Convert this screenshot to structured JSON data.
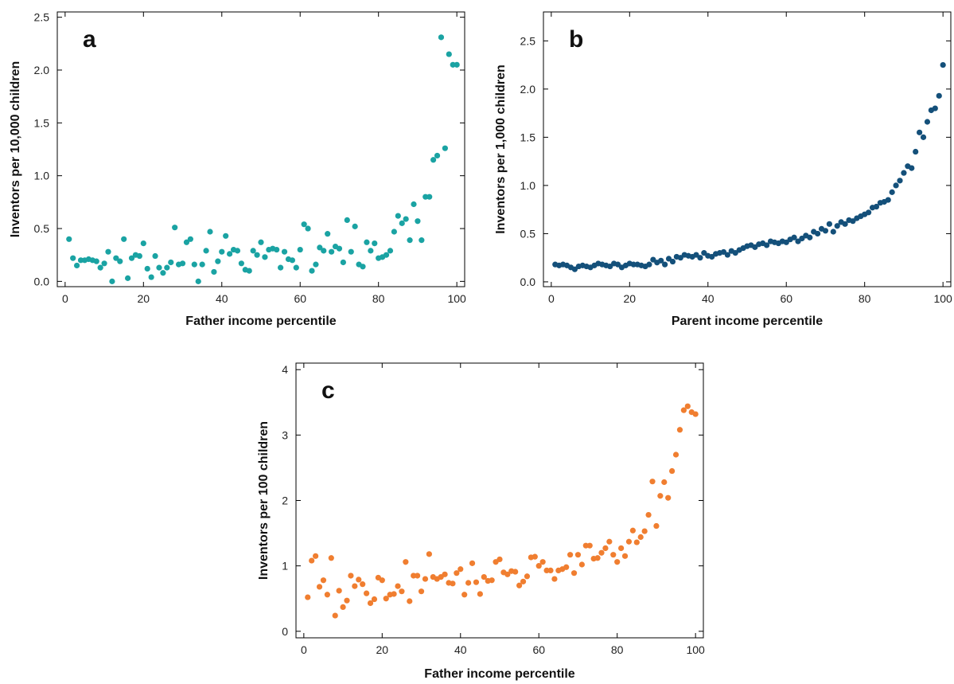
{
  "chart_data": [
    {
      "panel": "a",
      "type": "scatter",
      "xlabel": "Father income percentile",
      "ylabel": "Inventors per 10,000 children",
      "xlim": [
        -2,
        102
      ],
      "ylim": [
        -0.05,
        2.55
      ],
      "xticks": [
        0,
        20,
        40,
        60,
        80,
        100
      ],
      "yticks": [
        0.0,
        0.5,
        1.0,
        1.5,
        2.0,
        2.5
      ],
      "ytick_labels": [
        "0.0",
        "0.5",
        "1.0",
        "1.5",
        "2.0",
        "2.5"
      ],
      "color": "#1aa3a3",
      "grid": false,
      "x": [
        1,
        2,
        3,
        4,
        5,
        6,
        7,
        8,
        9,
        10,
        11,
        12,
        13,
        14,
        15,
        16,
        17,
        18,
        19,
        20,
        21,
        22,
        23,
        24,
        25,
        26,
        27,
        28,
        29,
        30,
        31,
        32,
        33,
        34,
        35,
        36,
        37,
        38,
        39,
        40,
        41,
        42,
        43,
        44,
        45,
        46,
        47,
        48,
        49,
        50,
        51,
        52,
        53,
        54,
        55,
        56,
        57,
        58,
        59,
        60,
        61,
        62,
        63,
        64,
        65,
        66,
        67,
        68,
        69,
        70,
        71,
        72,
        73,
        74,
        75,
        76,
        77,
        78,
        79,
        80,
        81,
        82,
        83,
        84,
        85,
        86,
        87,
        88,
        89,
        90,
        91,
        92,
        93,
        94,
        95,
        96,
        97,
        98,
        99,
        100
      ],
      "y": [
        0.4,
        0.22,
        0.15,
        0.2,
        0.2,
        0.21,
        0.2,
        0.19,
        0.13,
        0.17,
        0.28,
        0.0,
        0.22,
        0.19,
        0.4,
        0.03,
        0.22,
        0.25,
        0.24,
        0.36,
        0.12,
        0.04,
        0.24,
        0.13,
        0.08,
        0.13,
        0.18,
        0.51,
        0.16,
        0.17,
        0.37,
        0.4,
        0.16,
        0.0,
        0.16,
        0.29,
        0.47,
        0.09,
        0.19,
        0.28,
        0.43,
        0.26,
        0.3,
        0.29,
        0.17,
        0.11,
        0.1,
        0.29,
        0.25,
        0.37,
        0.23,
        0.3,
        0.31,
        0.3,
        0.13,
        0.28,
        0.21,
        0.2,
        0.13,
        0.3,
        0.54,
        0.5,
        0.1,
        0.16,
        0.32,
        0.29,
        0.45,
        0.28,
        0.33,
        0.31,
        0.18,
        0.58,
        0.28,
        0.52,
        0.16,
        0.14,
        0.37,
        0.29,
        0.36,
        0.22,
        0.23,
        0.25,
        0.29,
        0.47,
        0.62,
        0.55,
        0.59,
        0.39,
        0.73,
        0.57,
        0.39,
        0.8,
        0.8,
        1.15,
        1.19,
        2.31,
        1.26,
        2.15,
        2.05,
        2.05
      ]
    },
    {
      "panel": "b",
      "type": "scatter",
      "xlabel": "Parent income percentile",
      "ylabel": "Inventors per 1,000 children",
      "xlim": [
        -2,
        102
      ],
      "ylim": [
        -0.05,
        2.8
      ],
      "xticks": [
        0,
        20,
        40,
        60,
        80,
        100
      ],
      "yticks": [
        0.0,
        0.5,
        1.0,
        1.5,
        2.0,
        2.5
      ],
      "ytick_labels": [
        "0.0",
        "0.5",
        "1.0",
        "1.5",
        "2.0",
        "2.5"
      ],
      "color": "#14507a",
      "grid": false,
      "x": [
        1,
        2,
        3,
        4,
        5,
        6,
        7,
        8,
        9,
        10,
        11,
        12,
        13,
        14,
        15,
        16,
        17,
        18,
        19,
        20,
        21,
        22,
        23,
        24,
        25,
        26,
        27,
        28,
        29,
        30,
        31,
        32,
        33,
        34,
        35,
        36,
        37,
        38,
        39,
        40,
        41,
        42,
        43,
        44,
        45,
        46,
        47,
        48,
        49,
        50,
        51,
        52,
        53,
        54,
        55,
        56,
        57,
        58,
        59,
        60,
        61,
        62,
        63,
        64,
        65,
        66,
        67,
        68,
        69,
        70,
        71,
        72,
        73,
        74,
        75,
        76,
        77,
        78,
        79,
        80,
        81,
        82,
        83,
        84,
        85,
        86,
        87,
        88,
        89,
        90,
        91,
        92,
        93,
        94,
        95,
        96,
        97,
        98,
        99,
        100
      ],
      "y": [
        0.18,
        0.17,
        0.18,
        0.17,
        0.15,
        0.13,
        0.16,
        0.17,
        0.16,
        0.15,
        0.17,
        0.19,
        0.18,
        0.17,
        0.16,
        0.19,
        0.18,
        0.15,
        0.17,
        0.19,
        0.18,
        0.18,
        0.17,
        0.16,
        0.18,
        0.23,
        0.2,
        0.22,
        0.18,
        0.24,
        0.21,
        0.26,
        0.25,
        0.28,
        0.27,
        0.26,
        0.28,
        0.25,
        0.3,
        0.27,
        0.26,
        0.29,
        0.3,
        0.31,
        0.28,
        0.32,
        0.3,
        0.33,
        0.35,
        0.37,
        0.38,
        0.36,
        0.39,
        0.4,
        0.38,
        0.42,
        0.41,
        0.4,
        0.42,
        0.41,
        0.44,
        0.46,
        0.42,
        0.45,
        0.48,
        0.46,
        0.52,
        0.5,
        0.55,
        0.53,
        0.6,
        0.52,
        0.58,
        0.62,
        0.6,
        0.64,
        0.63,
        0.66,
        0.68,
        0.7,
        0.72,
        0.77,
        0.78,
        0.82,
        0.83,
        0.85,
        0.93,
        1.0,
        1.05,
        1.13,
        1.2,
        1.18,
        1.35,
        1.55,
        1.5,
        1.66,
        1.78,
        1.8,
        1.93,
        2.25
      ]
    },
    {
      "panel": "c",
      "type": "scatter",
      "xlabel": "Father income percentile",
      "ylabel": "Inventors per 100 children",
      "xlim": [
        -2,
        102
      ],
      "ylim": [
        -0.1,
        4.1
      ],
      "xticks": [
        0,
        20,
        40,
        60,
        80,
        100
      ],
      "yticks": [
        0,
        1,
        2,
        3,
        4
      ],
      "ytick_labels": [
        "0",
        "1",
        "2",
        "3",
        "4"
      ],
      "color": "#f07e30",
      "grid": false,
      "x": [
        1,
        2,
        3,
        4,
        5,
        6,
        7,
        8,
        9,
        10,
        11,
        12,
        13,
        14,
        15,
        16,
        17,
        18,
        19,
        20,
        21,
        22,
        23,
        24,
        25,
        26,
        27,
        28,
        29,
        30,
        31,
        32,
        33,
        34,
        35,
        36,
        37,
        38,
        39,
        40,
        41,
        42,
        43,
        44,
        45,
        46,
        47,
        48,
        49,
        50,
        51,
        52,
        53,
        54,
        55,
        56,
        57,
        58,
        59,
        60,
        61,
        62,
        63,
        64,
        65,
        66,
        67,
        68,
        69,
        70,
        71,
        72,
        73,
        74,
        75,
        76,
        77,
        78,
        79,
        80,
        81,
        82,
        83,
        84,
        85,
        86,
        87,
        88,
        89,
        90,
        91,
        92,
        93,
        94,
        95,
        96,
        97,
        98,
        99,
        100
      ],
      "y": [
        0.52,
        1.08,
        1.15,
        0.68,
        0.78,
        0.56,
        1.12,
        0.24,
        0.62,
        0.37,
        0.47,
        0.85,
        0.69,
        0.79,
        0.72,
        0.58,
        0.43,
        0.49,
        0.82,
        0.78,
        0.5,
        0.56,
        0.57,
        0.69,
        0.61,
        1.06,
        0.46,
        0.85,
        0.85,
        0.61,
        0.8,
        1.18,
        0.83,
        0.8,
        0.83,
        0.87,
        0.74,
        0.73,
        0.89,
        0.95,
        0.56,
        0.74,
        1.04,
        0.75,
        0.57,
        0.83,
        0.77,
        0.78,
        1.06,
        1.1,
        0.9,
        0.87,
        0.92,
        0.91,
        0.7,
        0.76,
        0.84,
        1.13,
        1.14,
        1.0,
        1.06,
        0.93,
        0.93,
        0.8,
        0.93,
        0.95,
        0.98,
        1.17,
        0.89,
        1.17,
        1.02,
        1.31,
        1.31,
        1.11,
        1.12,
        1.2,
        1.27,
        1.37,
        1.17,
        1.06,
        1.27,
        1.15,
        1.37,
        1.54,
        1.36,
        1.44,
        1.53,
        1.78,
        2.29,
        1.61,
        2.07,
        2.28,
        2.04,
        2.45,
        2.7,
        3.08,
        3.38,
        3.44,
        3.35,
        3.32
      ]
    }
  ]
}
